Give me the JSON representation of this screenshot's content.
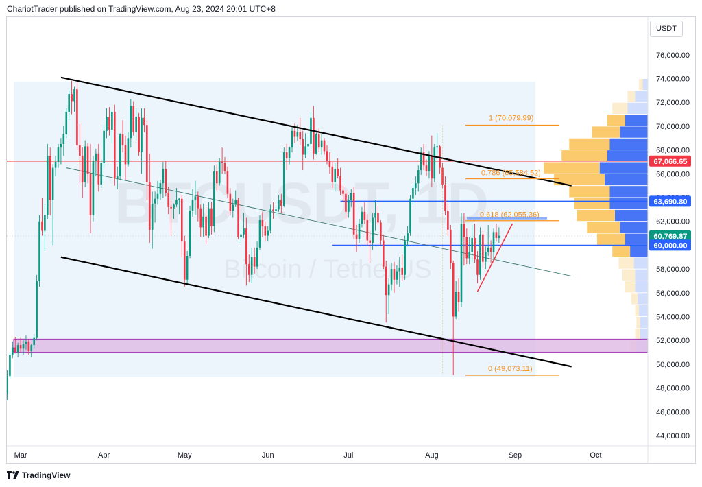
{
  "header": {
    "publisher_line": "ChariotTrader published on TradingView.com, Aug 23, 2024 20:01 UTC+8"
  },
  "footer": {
    "brand": "TradingView"
  },
  "watermark": {
    "symbol": "BTCUSDT, 1D",
    "description": "Bitcoin / TetherUS"
  },
  "chart_data": {
    "type": "candlestick",
    "currency": "USDT",
    "ylim": [
      43000,
      77500
    ],
    "y_ticks": [
      "44,000.00",
      "46,000.00",
      "48,000.00",
      "50,000.00",
      "52,000.00",
      "54,000.00",
      "56,000.00",
      "58,000.00",
      "60,000.00",
      "62,000.00",
      "64,000.00",
      "66,000.00",
      "68,000.00",
      "70,000.00",
      "72,000.00",
      "74,000.00",
      "76,000.00"
    ],
    "x_ticks": [
      "Mar",
      "Apr",
      "May",
      "Jun",
      "Jul",
      "Aug",
      "Sep",
      "Oct"
    ],
    "price_labels": [
      {
        "text": "67,066.65",
        "value": 67066.65,
        "color": "#f23645"
      },
      {
        "text": "63,690.80",
        "value": 63690.8,
        "color": "#2962ff"
      },
      {
        "text": "60,769.87",
        "value": 60769.87,
        "color": "#089981"
      },
      {
        "text": "60,000.00",
        "value": 60000.0,
        "color": "#2962ff"
      }
    ],
    "fib_levels": [
      {
        "label": "1 (70,079.99)",
        "value": 70079.99
      },
      {
        "label": "0.786 (65,584.52)",
        "value": 65584.52
      },
      {
        "label": "0.618 (62,055.36)",
        "value": 62055.36
      },
      {
        "label": "0 (49,073.11)",
        "value": 49073.11
      }
    ],
    "horizontal_lines": [
      {
        "value": 67066.65,
        "color": "#f23645"
      },
      {
        "value": 63690.8,
        "color": "#2962ff",
        "start_day": 124
      },
      {
        "value": 60000.0,
        "color": "#2962ff",
        "start_day": 121
      }
    ],
    "zone": {
      "low": 51000,
      "high": 52100,
      "color": "#9c27b0"
    },
    "channel": {
      "upper": [
        [
          20,
          74100
        ],
        [
          210,
          65000
        ]
      ],
      "lower": [
        [
          20,
          59000
        ],
        [
          210,
          49800
        ]
      ],
      "mid": [
        [
          22,
          66500
        ],
        [
          210,
          57400
        ]
      ]
    },
    "support_trend": [
      [
        175,
        56100
      ],
      [
        188,
        61800
      ]
    ],
    "volume_profile": [
      {
        "p": 51500,
        "a": 0.05,
        "b": 0.09
      },
      {
        "p": 52500,
        "a": 0.04,
        "b": 0.06
      },
      {
        "p": 53500,
        "a": 0.03,
        "b": 0.06
      },
      {
        "p": 54500,
        "a": 0.03,
        "b": 0.07
      },
      {
        "p": 55500,
        "a": 0.05,
        "b": 0.08
      },
      {
        "p": 56500,
        "a": 0.08,
        "b": 0.1
      },
      {
        "p": 57500,
        "a": 0.1,
        "b": 0.1
      },
      {
        "p": 58500,
        "a": 0.12,
        "b": 0.11
      },
      {
        "p": 59500,
        "a": 0.14,
        "b": 0.14
      },
      {
        "p": 60500,
        "a": 0.22,
        "b": 0.18
      },
      {
        "p": 61500,
        "a": 0.26,
        "b": 0.22
      },
      {
        "p": 62500,
        "a": 0.3,
        "b": 0.26
      },
      {
        "p": 63500,
        "a": 0.28,
        "b": 0.3
      },
      {
        "p": 64500,
        "a": 0.32,
        "b": 0.3
      },
      {
        "p": 65500,
        "a": 0.4,
        "b": 0.34
      },
      {
        "p": 66500,
        "a": 0.44,
        "b": 0.38
      },
      {
        "p": 67500,
        "a": 0.36,
        "b": 0.32
      },
      {
        "p": 68500,
        "a": 0.32,
        "b": 0.3
      },
      {
        "p": 69500,
        "a": 0.22,
        "b": 0.22
      },
      {
        "p": 70500,
        "a": 0.14,
        "b": 0.18
      },
      {
        "p": 71500,
        "a": 0.12,
        "b": 0.16
      },
      {
        "p": 72500,
        "a": 0.06,
        "b": 0.1
      },
      {
        "p": 73500,
        "a": 0.03,
        "b": 0.04
      }
    ],
    "candles_note": "daily OHLC, Feb 25 – Aug 23 2024",
    "candles": [
      [
        47500,
        49500,
        47000,
        49000
      ],
      [
        49000,
        51000,
        48800,
        50800
      ],
      [
        50800,
        51900,
        50500,
        51400
      ],
      [
        51400,
        52300,
        50900,
        51000
      ],
      [
        51000,
        51800,
        50600,
        51600
      ],
      [
        51600,
        52200,
        51000,
        51300
      ],
      [
        51300,
        52000,
        50800,
        51700
      ],
      [
        51700,
        52400,
        51200,
        51900
      ],
      [
        51900,
        52100,
        50800,
        51100
      ],
      [
        51100,
        51700,
        50600,
        51600
      ],
      [
        51600,
        52500,
        51300,
        52200
      ],
      [
        52200,
        57500,
        52000,
        57000
      ],
      [
        57000,
        62500,
        56500,
        62000
      ],
      [
        62000,
        64000,
        60800,
        61200
      ],
      [
        61200,
        63500,
        59500,
        62500
      ],
      [
        62500,
        68500,
        62200,
        67500
      ],
      [
        67500,
        68200,
        62500,
        63800
      ],
      [
        63800,
        66800,
        60000,
        66500
      ],
      [
        66500,
        67500,
        65800,
        67000
      ],
      [
        67000,
        68500,
        66500,
        68200
      ],
      [
        68200,
        69000,
        66800,
        68500
      ],
      [
        68500,
        70000,
        67500,
        69300
      ],
      [
        69300,
        71500,
        69000,
        71200
      ],
      [
        71200,
        73000,
        70500,
        72700
      ],
      [
        72700,
        73800,
        71000,
        72100
      ],
      [
        72100,
        73300,
        71200,
        73100
      ],
      [
        73100,
        73700,
        68000,
        68400
      ],
      [
        68400,
        70200,
        65200,
        67500
      ],
      [
        67500,
        68200,
        64000,
        65300
      ],
      [
        65300,
        68800,
        64900,
        68300
      ],
      [
        68300,
        68600,
        65200,
        66000
      ],
      [
        66000,
        68500,
        61000,
        62500
      ],
      [
        62500,
        67500,
        62000,
        67100
      ],
      [
        67100,
        68100,
        65800,
        67700
      ],
      [
        67700,
        68500,
        64500,
        65100
      ],
      [
        65100,
        67200,
        64800,
        66900
      ],
      [
        66900,
        70100,
        66500,
        69600
      ],
      [
        69600,
        71500,
        69000,
        70800
      ],
      [
        70800,
        71600,
        69200,
        69700
      ],
      [
        69700,
        71300,
        68600,
        71200
      ],
      [
        71200,
        71800,
        65000,
        65600
      ],
      [
        65600,
        66600,
        64700,
        65800
      ],
      [
        65800,
        69400,
        65500,
        69300
      ],
      [
        69300,
        70500,
        67800,
        68400
      ],
      [
        68400,
        69200,
        65500,
        66800
      ],
      [
        66800,
        69500,
        66600,
        69000
      ],
      [
        69000,
        72300,
        68200,
        71700
      ],
      [
        71700,
        72100,
        69200,
        69500
      ],
      [
        69500,
        71500,
        68800,
        70800
      ],
      [
        70800,
        71100,
        67500,
        67800
      ],
      [
        67800,
        71500,
        66000,
        70700
      ],
      [
        70700,
        71500,
        69500,
        70100
      ],
      [
        70100,
        70500,
        63800,
        65300
      ],
      [
        65300,
        67700,
        60200,
        61300
      ],
      [
        61300,
        64500,
        59700,
        63500
      ],
      [
        63500,
        64500,
        61900,
        63900
      ],
      [
        63900,
        65400,
        63400,
        64300
      ],
      [
        64300,
        65500,
        63800,
        65200
      ],
      [
        65200,
        67000,
        64000,
        66400
      ],
      [
        66400,
        67100,
        64100,
        64400
      ],
      [
        64400,
        64900,
        62600,
        63200
      ],
      [
        63200,
        63700,
        60800,
        63100
      ],
      [
        63100,
        63500,
        62200,
        63400
      ],
      [
        63400,
        64800,
        63200,
        63800
      ],
      [
        63800,
        64000,
        62600,
        63900
      ],
      [
        63900,
        64200,
        59000,
        60300
      ],
      [
        60300,
        60800,
        56500,
        57100
      ],
      [
        57100,
        59500,
        56800,
        59100
      ],
      [
        59100,
        63300,
        58900,
        62900
      ],
      [
        62900,
        64700,
        62400,
        63800
      ],
      [
        63800,
        65400,
        62500,
        64100
      ],
      [
        64100,
        64500,
        62000,
        63100
      ],
      [
        63100,
        63400,
        60700,
        61500
      ],
      [
        61500,
        63500,
        60700,
        62400
      ],
      [
        62400,
        63200,
        60100,
        60800
      ],
      [
        60800,
        63600,
        60600,
        63100
      ],
      [
        63100,
        63600,
        60900,
        61600
      ],
      [
        61600,
        66700,
        61100,
        66200
      ],
      [
        66200,
        66800,
        64600,
        65200
      ],
      [
        65200,
        67300,
        65000,
        67000
      ],
      [
        67000,
        68200,
        66000,
        66900
      ],
      [
        66900,
        67400,
        66000,
        66200
      ],
      [
        66200,
        66600,
        64000,
        64300
      ],
      [
        64300,
        64800,
        62500,
        62900
      ],
      [
        62900,
        63900,
        62300,
        63400
      ],
      [
        63400,
        64600,
        63200,
        63800
      ],
      [
        63800,
        64000,
        60500,
        60700
      ],
      [
        60700,
        62000,
        60200,
        60900
      ],
      [
        60900,
        62700,
        60600,
        61400
      ],
      [
        61400,
        62300,
        56600,
        58400
      ],
      [
        58400,
        59200,
        56900,
        57500
      ],
      [
        57500,
        59800,
        56800,
        59000
      ],
      [
        59000,
        59800,
        57600,
        58200
      ],
      [
        58200,
        60300,
        58000,
        59800
      ],
      [
        59800,
        62500,
        59600,
        62100
      ],
      [
        62100,
        62800,
        60700,
        61600
      ],
      [
        61600,
        62000,
        60300,
        60800
      ],
      [
        60800,
        61600,
        60300,
        61200
      ],
      [
        61200,
        63400,
        61000,
        63000
      ],
      [
        63000,
        63600,
        62200,
        62900
      ],
      [
        62900,
        63200,
        62400,
        63000
      ],
      [
        63000,
        64200,
        62800,
        63800
      ],
      [
        63800,
        64300,
        62700,
        63300
      ],
      [
        63300,
        68200,
        63200,
        67800
      ],
      [
        67800,
        68500,
        66300,
        67300
      ],
      [
        67300,
        68300,
        66800,
        68200
      ],
      [
        68200,
        69900,
        67800,
        69600
      ],
      [
        69600,
        70200,
        68600,
        69100
      ],
      [
        69100,
        70100,
        68800,
        69500
      ],
      [
        69500,
        70700,
        68400,
        68900
      ],
      [
        68900,
        69600,
        66300,
        67600
      ],
      [
        67600,
        69400,
        67300,
        68300
      ],
      [
        68300,
        69200,
        67600,
        68500
      ],
      [
        68500,
        71200,
        68100,
        70700
      ],
      [
        70700,
        71700,
        67200,
        67700
      ],
      [
        67700,
        69600,
        67600,
        69300
      ],
      [
        69300,
        69800,
        67800,
        68200
      ],
      [
        68200,
        69300,
        67600,
        68800
      ],
      [
        68800,
        69000,
        67600,
        67900
      ],
      [
        67900,
        68400,
        66800,
        67100
      ],
      [
        67100,
        67800,
        66000,
        66600
      ],
      [
        66600,
        67000,
        64800,
        65300
      ],
      [
        65300,
        66900,
        64500,
        66400
      ],
      [
        66400,
        67300,
        65600,
        65800
      ],
      [
        65800,
        66500,
        64200,
        64600
      ],
      [
        64600,
        65000,
        63600,
        64300
      ],
      [
        64300,
        64600,
        62200,
        62800
      ],
      [
        62800,
        64200,
        62300,
        63800
      ],
      [
        63800,
        64700,
        63200,
        64400
      ],
      [
        64400,
        64900,
        60500,
        60900
      ],
      [
        60900,
        61700,
        59400,
        60500
      ],
      [
        60500,
        62200,
        60200,
        61800
      ],
      [
        61800,
        63200,
        61500,
        62800
      ],
      [
        62800,
        63600,
        61800,
        62100
      ],
      [
        62100,
        62600,
        60000,
        60400
      ],
      [
        60400,
        61200,
        58500,
        60200
      ],
      [
        60200,
        62700,
        59600,
        62300
      ],
      [
        62300,
        63800,
        61200,
        62700
      ],
      [
        62700,
        63300,
        61700,
        61900
      ],
      [
        61900,
        62100,
        60000,
        60400
      ],
      [
        60400,
        60900,
        58000,
        58200
      ],
      [
        58200,
        58700,
        53500,
        55800
      ],
      [
        55800,
        57200,
        54200,
        56700
      ],
      [
        56700,
        58500,
        56200,
        58000
      ],
      [
        58000,
        58600,
        56000,
        57100
      ],
      [
        57100,
        58300,
        56700,
        57800
      ],
      [
        57800,
        59000,
        56500,
        58100
      ],
      [
        58100,
        59200,
        57000,
        57500
      ],
      [
        57500,
        60800,
        57100,
        60300
      ],
      [
        60300,
        61600,
        59900,
        61000
      ],
      [
        61000,
        64200,
        60800,
        63900
      ],
      [
        63900,
        65100,
        63400,
        64800
      ],
      [
        64800,
        65800,
        64200,
        65200
      ],
      [
        65200,
        66700,
        64500,
        66300
      ],
      [
        66300,
        68200,
        65900,
        67800
      ],
      [
        67800,
        68500,
        66300,
        66700
      ],
      [
        66700,
        67200,
        65800,
        66200
      ],
      [
        66200,
        67900,
        65600,
        67500
      ],
      [
        67500,
        69200,
        64900,
        65600
      ],
      [
        65600,
        68500,
        65300,
        68200
      ],
      [
        68200,
        69400,
        67700,
        68300
      ],
      [
        68300,
        68400,
        66000,
        66500
      ],
      [
        66500,
        66900,
        64800,
        65100
      ],
      [
        65100,
        65800,
        62500,
        62900
      ],
      [
        62900,
        63500,
        60800,
        61300
      ],
      [
        61300,
        61700,
        58000,
        58500
      ],
      [
        58500,
        58700,
        49100,
        54000
      ],
      [
        54000,
        57000,
        53800,
        56100
      ],
      [
        56100,
        57200,
        54400,
        55200
      ],
      [
        55200,
        62700,
        54800,
        61800
      ],
      [
        61800,
        62700,
        58300,
        60700
      ],
      [
        60700,
        61400,
        58400,
        58900
      ],
      [
        58900,
        60700,
        58400,
        59400
      ],
      [
        59400,
        61700,
        58600,
        60600
      ],
      [
        60600,
        61800,
        58500,
        58800
      ],
      [
        58800,
        59500,
        56800,
        57500
      ],
      [
        57500,
        61500,
        57100,
        60900
      ],
      [
        60900,
        61200,
        58100,
        58600
      ],
      [
        58600,
        59900,
        58000,
        59400
      ],
      [
        59400,
        61700,
        59100,
        59800
      ],
      [
        59800,
        60400,
        58500,
        59400
      ],
      [
        59400,
        61400,
        58800,
        61100
      ],
      [
        61100,
        61800,
        60300,
        60600
      ],
      [
        60600,
        61500,
        60200,
        60800
      ]
    ]
  }
}
